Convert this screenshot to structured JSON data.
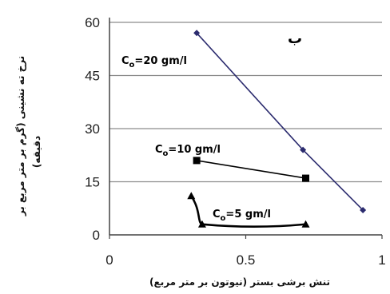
{
  "chart_data": {
    "type": "line",
    "title": "",
    "panel_label": "ب",
    "xlabel": "تنش برشی بستر (نیوتون بر متر مربع)",
    "ylabel": "نرخ ته نشینی (گرم بر متر مربع بر دقیقه)",
    "ylabel_lines": [
      "نرخ ته نشینی (گرم بر متر مربع بر",
      "دقیقه)"
    ],
    "xlim": [
      0,
      1
    ],
    "ylim": [
      0,
      60
    ],
    "x_ticks": [
      0,
      0.5,
      1
    ],
    "x_tick_labels": [
      "0",
      "0.5",
      "1"
    ],
    "y_ticks": [
      0,
      15,
      30,
      45,
      60
    ],
    "y_tick_labels": [
      "0",
      "15",
      "30",
      "45",
      "60"
    ],
    "grid": "horizontal",
    "legend": "inline labels",
    "series": [
      {
        "name": "Co=20 gm/l",
        "label_main": "C",
        "label_sub": "o",
        "label_rest": "=20 gm/l",
        "marker": "diamond",
        "smooth": false,
        "x": [
          0.32,
          0.71,
          0.93
        ],
        "y": [
          57,
          24,
          7
        ],
        "color": "#2b2b6e"
      },
      {
        "name": "Co=10 gm/l",
        "label_main": "C",
        "label_sub": "o",
        "label_rest": "=10 gm/l",
        "marker": "square",
        "smooth": false,
        "x": [
          0.32,
          0.72
        ],
        "y": [
          21,
          16
        ],
        "color": "#000000"
      },
      {
        "name": "Co=5 gm/l",
        "label_main": "C",
        "label_sub": "o",
        "label_rest": "=5 gm/l",
        "marker": "triangle",
        "smooth": true,
        "x": [
          0.3,
          0.34,
          0.72
        ],
        "y": [
          11,
          3,
          3
        ],
        "color": "#000000"
      }
    ]
  }
}
